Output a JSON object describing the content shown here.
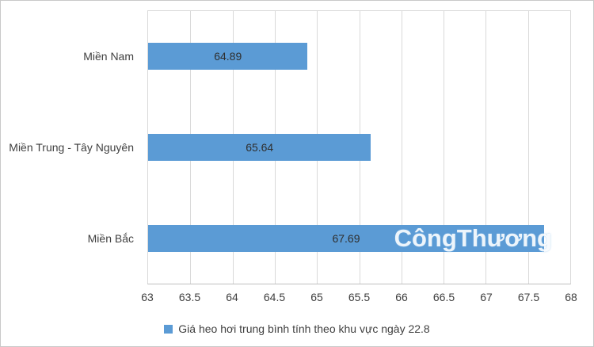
{
  "chart_data": {
    "type": "bar",
    "orientation": "horizontal",
    "title": "",
    "categories": [
      "Miền Nam",
      "Miền Trung - Tây Nguyên",
      "Miền Bắc"
    ],
    "values": [
      64.89,
      65.64,
      67.69
    ],
    "value_labels": [
      "64.89",
      "65.64",
      "67.69"
    ],
    "xlim": [
      63,
      68
    ],
    "x_ticks": [
      "63",
      "63.5",
      "64",
      "64.5",
      "65",
      "65.5",
      "66",
      "66.5",
      "67",
      "67.5",
      "68"
    ],
    "grid": true,
    "legend_position": "bottom",
    "legend_label": "Giá heo hơi trung bình tính theo khu vực ngày 22.8",
    "bar_color": "#5b9bd5"
  },
  "watermark": "CôngThương"
}
